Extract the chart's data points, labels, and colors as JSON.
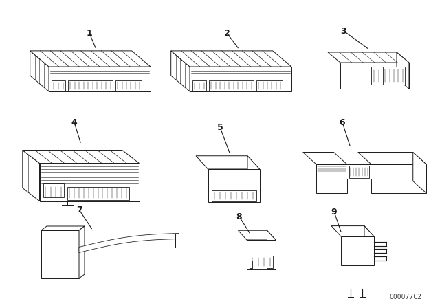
{
  "background_color": "#ffffff",
  "line_color": "#1a1a1a",
  "part_number_text": "000077C2",
  "part_number_fontsize": 7,
  "label_fontsize": 9,
  "figsize": [
    6.4,
    4.48
  ],
  "dpi": 100
}
